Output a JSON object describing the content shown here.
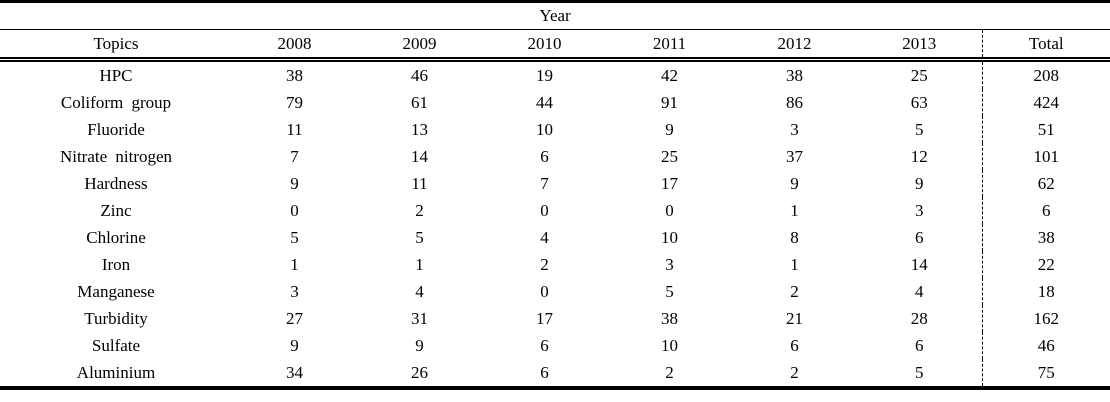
{
  "table": {
    "year_header": "Year",
    "columns": [
      "Topics",
      "2008",
      "2009",
      "2010",
      "2011",
      "2012",
      "2013",
      "Total"
    ],
    "rows": [
      {
        "topic": "HPC",
        "values": [
          "38",
          "46",
          "19",
          "42",
          "38",
          "25"
        ],
        "total": "208"
      },
      {
        "topic": "Coliform group",
        "values": [
          "79",
          "61",
          "44",
          "91",
          "86",
          "63"
        ],
        "total": "424"
      },
      {
        "topic": "Fluoride",
        "values": [
          "11",
          "13",
          "10",
          "9",
          "3",
          "5"
        ],
        "total": "51"
      },
      {
        "topic": "Nitrate nitrogen",
        "values": [
          "7",
          "14",
          "6",
          "25",
          "37",
          "12"
        ],
        "total": "101"
      },
      {
        "topic": "Hardness",
        "values": [
          "9",
          "11",
          "7",
          "17",
          "9",
          "9"
        ],
        "total": "62"
      },
      {
        "topic": "Zinc",
        "values": [
          "0",
          "2",
          "0",
          "0",
          "1",
          "3"
        ],
        "total": "6"
      },
      {
        "topic": "Chlorine",
        "values": [
          "5",
          "5",
          "4",
          "10",
          "8",
          "6"
        ],
        "total": "38"
      },
      {
        "topic": "Iron",
        "values": [
          "1",
          "1",
          "2",
          "3",
          "1",
          "14"
        ],
        "total": "22"
      },
      {
        "topic": "Manganese",
        "values": [
          "3",
          "4",
          "0",
          "5",
          "2",
          "4"
        ],
        "total": "18"
      },
      {
        "topic": "Turbidity",
        "values": [
          "27",
          "31",
          "17",
          "38",
          "21",
          "28"
        ],
        "total": "162"
      },
      {
        "topic": "Sulfate",
        "values": [
          "9",
          "9",
          "6",
          "10",
          "6",
          "6"
        ],
        "total": "46"
      },
      {
        "topic": "Aluminium",
        "values": [
          "34",
          "26",
          "6",
          "2",
          "2",
          "5"
        ],
        "total": "75"
      }
    ]
  },
  "colors": {
    "text": "#000000",
    "background": "#ffffff",
    "rule": "#000000"
  }
}
